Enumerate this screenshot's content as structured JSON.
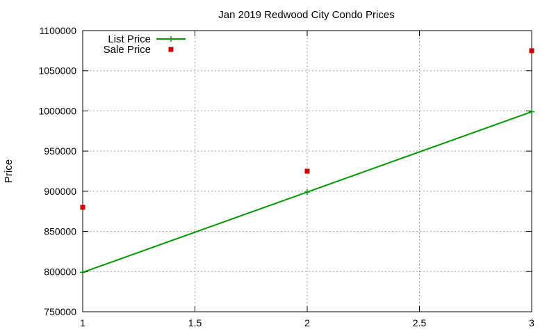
{
  "chart_data": {
    "type": "line",
    "title": "Jan 2019 Redwood City Condo Prices",
    "xlabel": "",
    "ylabel": "Price",
    "xlim": [
      1,
      3
    ],
    "ylim": [
      750000,
      1100000
    ],
    "x_ticks": [
      1,
      1.5,
      2,
      2.5,
      3
    ],
    "x_tick_labels": [
      "1",
      "1.5",
      "2",
      "2.5",
      "3"
    ],
    "y_ticks": [
      750000,
      800000,
      850000,
      900000,
      950000,
      1000000,
      1050000,
      1100000
    ],
    "y_tick_labels": [
      "750000",
      "800000",
      "850000",
      "900000",
      "950000",
      "1000000",
      "1050000",
      "1100000"
    ],
    "grid": true,
    "legend": {
      "position": "top-left"
    },
    "series": [
      {
        "name": "List Price",
        "style": "line-with-plus-markers",
        "color": "#009900",
        "x": [
          1,
          2,
          3
        ],
        "y": [
          799000,
          899000,
          999000
        ]
      },
      {
        "name": "Sale Price",
        "style": "square-markers",
        "color": "#cc0000",
        "x": [
          1,
          2,
          3
        ],
        "y": [
          880000,
          925000,
          1075000
        ]
      }
    ]
  }
}
